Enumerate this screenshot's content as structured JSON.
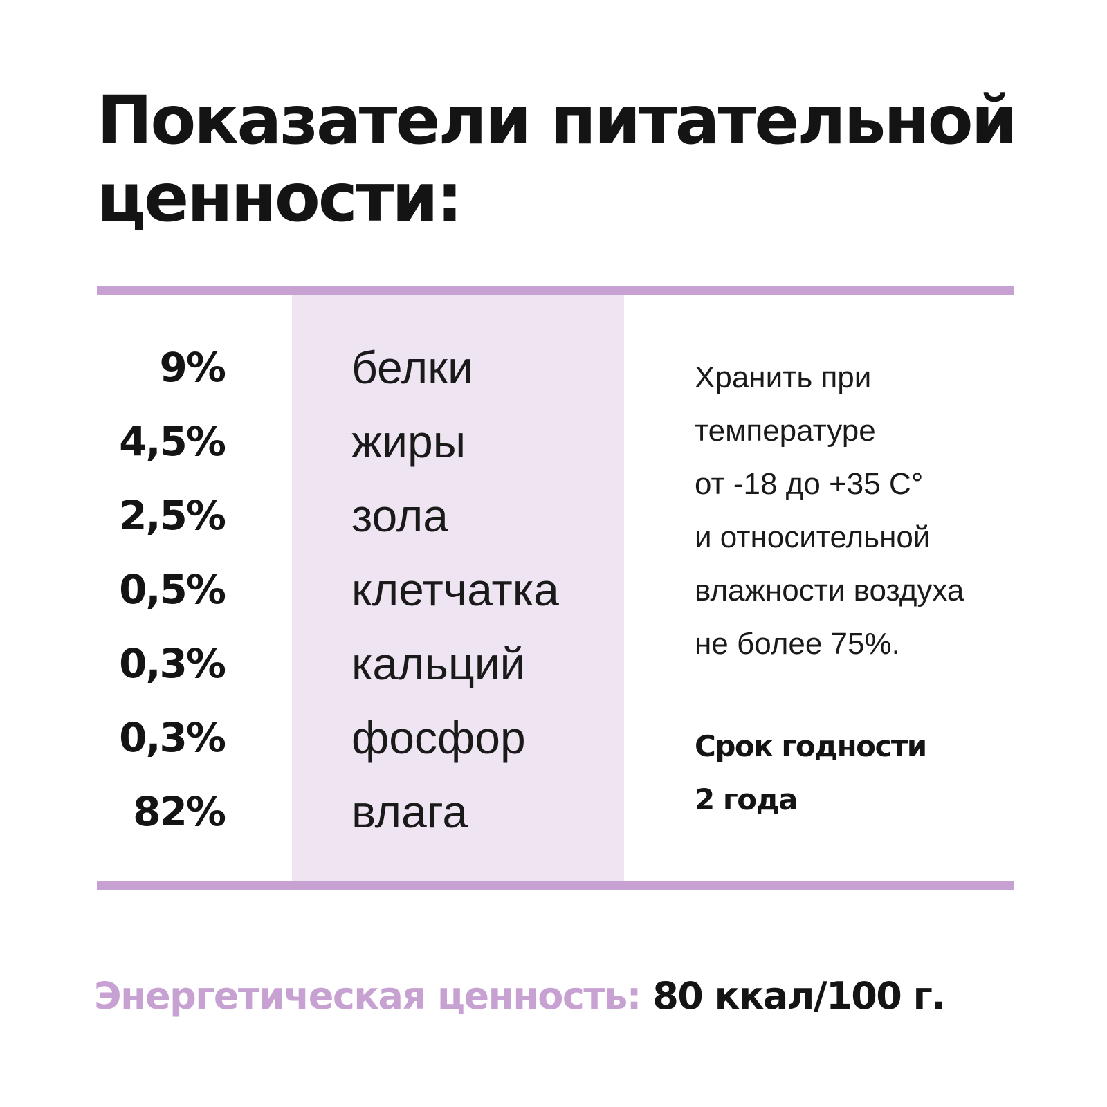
{
  "title": {
    "line1": "Показатели питательной",
    "line2": "ценности:"
  },
  "nutrients": [
    {
      "percent": "9%",
      "name": "белки"
    },
    {
      "percent": "4,5%",
      "name": "жиры"
    },
    {
      "percent": "2,5%",
      "name": "зола"
    },
    {
      "percent": "0,5%",
      "name": "клетчатка"
    },
    {
      "percent": "0,3%",
      "name": "кальций"
    },
    {
      "percent": "0,3%",
      "name": "фосфор"
    },
    {
      "percent": "82%",
      "name": "влага"
    }
  ],
  "storage": {
    "lines": [
      "Хранить при",
      "температуре",
      "от -18 до +35 С°",
      "и относительной",
      "влажности воздуха",
      "не более 75%."
    ]
  },
  "shelf_life": {
    "line1": "Срок годности",
    "line2": "2 года"
  },
  "energy": {
    "label": "Энергетическая ценность:",
    "value": "80 ккал/100 г."
  },
  "colors": {
    "accent": "#c7a1d2",
    "column_background": "#efe4f2",
    "text": "#141414"
  }
}
